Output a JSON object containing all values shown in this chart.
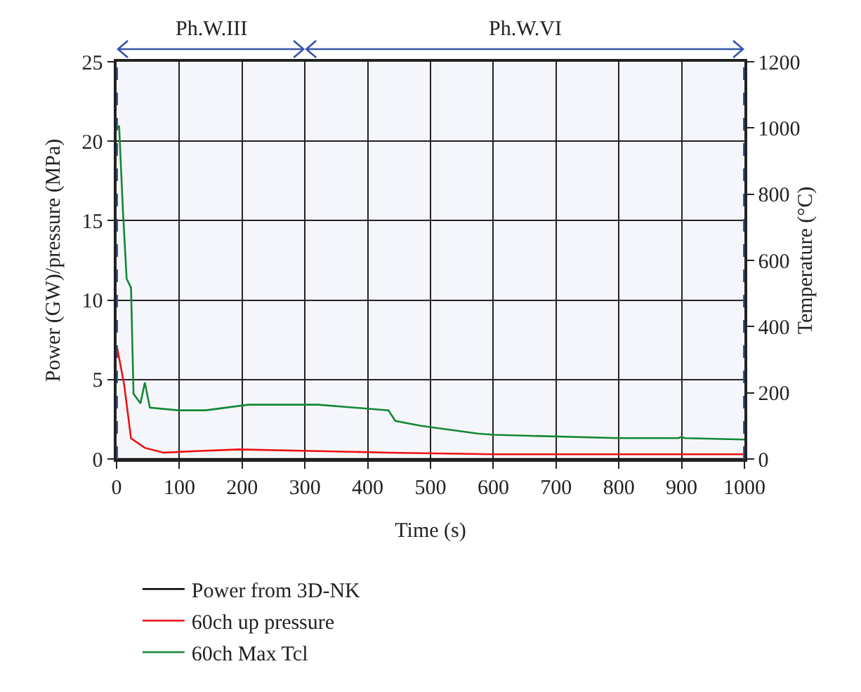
{
  "chart_data": {
    "type": "line",
    "xlabel": "Time (s)",
    "ylabel": "Power (GW)/pressure (MPa)",
    "y2label": "Temperature (°C)",
    "xlim": [
      0,
      1000
    ],
    "xticks": [
      0,
      100,
      200,
      300,
      400,
      500,
      600,
      700,
      800,
      900,
      1000
    ],
    "ylim": [
      0,
      25
    ],
    "yticks": [
      0,
      5,
      10,
      15,
      20,
      25
    ],
    "y2lim": [
      0,
      1200
    ],
    "y2ticks": [
      0,
      200,
      400,
      600,
      800,
      1000,
      1200
    ],
    "grid": true,
    "legend": "bottom",
    "line_style": "solid",
    "marker": "none",
    "ref_lines": [
      {
        "axis": "x",
        "value": 0,
        "color": "#3355aa",
        "line_style": "dashed"
      },
      {
        "axis": "x",
        "value": 1000,
        "color": "#3355aa",
        "line_style": "dashed"
      }
    ],
    "bands": [
      {
        "axis": "x",
        "from": 0,
        "to": 300,
        "label": "Ph.W.III",
        "color": "#3355aa"
      },
      {
        "axis": "x",
        "from": 300,
        "to": 1000,
        "label": "Ph.W.VI",
        "color": "#3355aa"
      }
    ],
    "series": [
      {
        "name": "Power from 3D-NK",
        "color": "#000000",
        "x": [
          0,
          1000
        ],
        "values": [
          0,
          0
        ]
      },
      {
        "name": "60ch up pressure",
        "color": "#ee1111",
        "x": [
          1,
          12,
          23,
          45,
          75,
          127,
          195,
          321,
          433,
          600,
          800,
          1000
        ],
        "values": [
          7,
          4.7,
          1.3,
          0.7,
          0.4,
          0.5,
          0.6,
          0.5,
          0.4,
          0.3,
          0.3,
          0.3
        ]
      },
      {
        "name": "60ch Max Tcl",
        "color": "#118833",
        "axis": "y2",
        "x": [
          2,
          4,
          10,
          16,
          23,
          27,
          38,
          45,
          53,
          98,
          142,
          210,
          321,
          433,
          444,
          485,
          575,
          601,
          799,
          895,
          900,
          905,
          1000
        ],
        "values": [
          1000,
          1007,
          755,
          545,
          517,
          197,
          168,
          231,
          155,
          147,
          147,
          164,
          164,
          147,
          115,
          100,
          77,
          73,
          63,
          63,
          67,
          63,
          59
        ]
      }
    ]
  }
}
